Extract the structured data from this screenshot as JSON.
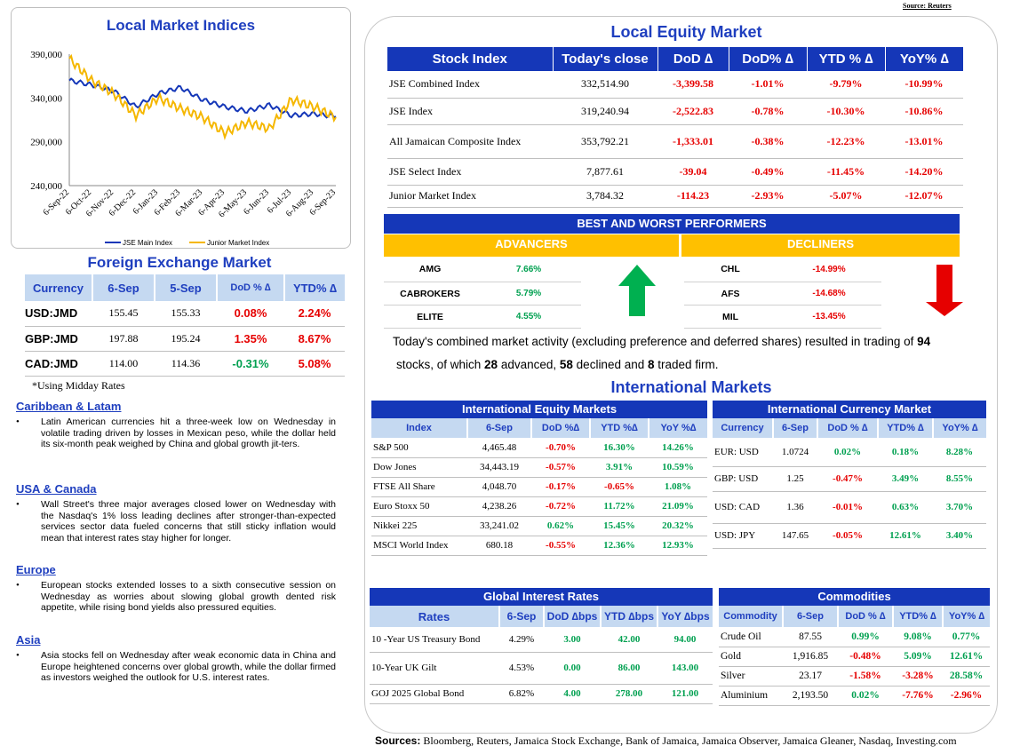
{
  "source_top": "Source: Reuters",
  "chart": {
    "title": "Local Market Indices",
    "chart_data": {
      "type": "line",
      "x": [
        "6-Sep-22",
        "6-Oct-22",
        "6-Nov-22",
        "6-Dec-22",
        "6-Jan-23",
        "6-Feb-23",
        "6-Mar-23",
        "6-Apr-23",
        "6-May-23",
        "6-Jun-23",
        "6-Jul-23",
        "6-Aug-23",
        "6-Sep-23"
      ],
      "series": [
        {
          "name": "JSE Main Index",
          "color": "#1537b8",
          "values": [
            360000,
            355000,
            348000,
            330000,
            345000,
            352000,
            338000,
            330000,
            325000,
            332000,
            320000,
            322000,
            319000
          ]
        },
        {
          "name": "Junior Market Index",
          "color": "#f5b700",
          "values": [
            385000,
            360000,
            345000,
            320000,
            340000,
            328000,
            318000,
            300000,
            312000,
            305000,
            338000,
            330000,
            318000
          ]
        }
      ],
      "yticks": [
        "390,000",
        "340,000",
        "290,000",
        "240,000"
      ],
      "ylim": [
        240000,
        390000
      ]
    }
  },
  "fx": {
    "title": "Foreign Exchange Market",
    "headers": [
      "Currency",
      "6-Sep",
      "5-Sep",
      "DoD % ∆",
      "YTD% ∆"
    ],
    "rows": [
      {
        "cur": "USD:JMD",
        "d1": "155.45",
        "d2": "155.33",
        "dod": "0.08%",
        "ytd": "2.24%",
        "dod_s": "neg",
        "ytd_s": "neg"
      },
      {
        "cur": "GBP:JMD",
        "d1": "197.88",
        "d2": "195.24",
        "dod": "1.35%",
        "ytd": "8.67%",
        "dod_s": "neg",
        "ytd_s": "neg"
      },
      {
        "cur": "CAD:JMD",
        "d1": "114.00",
        "d2": "114.36",
        "dod": "-0.31%",
        "ytd": "5.08%",
        "dod_s": "pos",
        "ytd_s": "neg"
      }
    ],
    "note": "*Using Midday Rates"
  },
  "news": [
    {
      "heading": "Caribbean & Latam",
      "text": "Latin American currencies hit a three-week low on Wednesday in volatile trading driven by losses in Mexican peso, while the dollar held its six-month peak weighed by China and global growth jit-ters."
    },
    {
      "heading": "USA & Canada",
      "text": "Wall Street's three major averages closed lower on Wednesday with the Nasdaq's 1% loss leading declines after stronger-than-expected services sector data fueled concerns that still sticky inflation would mean that interest rates stay higher for longer."
    },
    {
      "heading": "Europe",
      "text": "European stocks extended losses to a sixth consecutive session on Wednesday as worries about slowing global growth dented risk appetite, while rising bond yields also pressured equities."
    },
    {
      "heading": "Asia",
      "text": "Asia stocks fell on Wednesday after weak economic data in China and Europe heightened concerns over global growth, while the dollar firmed as investors weighed the outlook for U.S. interest rates."
    }
  ],
  "equity": {
    "title": "Local Equity Market",
    "headers": [
      "Stock Index",
      "Today's close",
      "DoD  ∆",
      "DoD% ∆",
      "YTD % ∆",
      "YoY% ∆"
    ],
    "rows": [
      [
        "JSE Combined Index",
        "332,514.90",
        "-3,399.58",
        "-1.01%",
        "-9.79%",
        "-10.99%"
      ],
      [
        "JSE Index",
        "319,240.94",
        "-2,522.83",
        "-0.78%",
        "-10.30%",
        "-10.86%"
      ],
      [
        "All Jamaican Composite Index",
        "353,792.21",
        "-1,333.01",
        "-0.38%",
        "-12.23%",
        "-13.01%"
      ],
      [
        "JSE Select Index",
        "7,877.61",
        "-39.04",
        "-0.49%",
        "-11.45%",
        "-14.20%"
      ],
      [
        "Junior Market Index",
        "3,784.32",
        "-114.23",
        "-2.93%",
        "-5.07%",
        "-12.07%"
      ]
    ]
  },
  "performers": {
    "title": "BEST AND WORST PERFORMERS",
    "adv_label": "ADVANCERS",
    "dec_label": "DECLINERS",
    "advancers": [
      [
        "AMG",
        "7.66%"
      ],
      [
        "CABROKERS",
        "5.79%"
      ],
      [
        "ELITE",
        "4.55%"
      ]
    ],
    "decliners": [
      [
        "CHL",
        "-14.99%"
      ],
      [
        "AFS",
        "-14.68%"
      ],
      [
        "MIL",
        "-13.45%"
      ]
    ]
  },
  "activity": {
    "p1": "Today's combined market activity (excluding preference and deferred shares) resulted in trading of ",
    "n1": "94",
    "p2": "stocks, of which ",
    "n2": "28",
    "p3": " advanced, ",
    "n3": "58",
    "p4": " declined and ",
    "n4": "8",
    "p5": " traded firm."
  },
  "intl": {
    "title": "International Markets",
    "eq_title": "International Equity Markets",
    "eq_headers": [
      "Index",
      "6-Sep",
      "DoD %∆",
      "YTD %∆",
      "YoY %∆"
    ],
    "eq_rows": [
      [
        "S&P 500",
        "4,465.48",
        "-0.70%",
        "16.30%",
        "14.26%"
      ],
      [
        "Dow Jones",
        "34,443.19",
        "-0.57%",
        "3.91%",
        "10.59%"
      ],
      [
        "FTSE All Share",
        "4,048.70",
        "-0.17%",
        "-0.65%",
        "1.08%"
      ],
      [
        "Euro Stoxx 50",
        "4,238.26",
        "-0.72%",
        "11.72%",
        "21.09%"
      ],
      [
        "Nikkei 225",
        "33,241.02",
        "0.62%",
        "15.45%",
        "20.32%"
      ],
      [
        "MSCI World Index",
        "680.18",
        "-0.55%",
        "12.36%",
        "12.93%"
      ]
    ],
    "cur_title": "International Currency Market",
    "cur_headers": [
      "Currency",
      "6-Sep",
      "DoD % ∆",
      "YTD% ∆",
      "YoY% ∆"
    ],
    "cur_rows": [
      [
        "EUR: USD",
        "1.0724",
        "0.02%",
        "0.18%",
        "8.28%"
      ],
      [
        "GBP: USD",
        "1.25",
        "-0.47%",
        "3.49%",
        "8.55%"
      ],
      [
        "USD: CAD",
        "1.36",
        "-0.01%",
        "0.63%",
        "3.70%"
      ],
      [
        "USD: JPY",
        "147.65",
        "-0.05%",
        "12.61%",
        "3.40%"
      ]
    ]
  },
  "rates": {
    "title": "Global Interest Rates",
    "headers": [
      "Rates",
      "6-Sep",
      "DoD ∆bps",
      "YTD ∆bps",
      "YoY ∆bps"
    ],
    "rows": [
      [
        "10 -Year US Treasury Bond",
        "4.29%",
        "3.00",
        "42.00",
        "94.00"
      ],
      [
        "10-Year UK Gilt",
        "4.53%",
        "0.00",
        "86.00",
        "143.00"
      ],
      [
        "GOJ 2025 Global Bond",
        "6.82%",
        "4.00",
        "278.00",
        "121.00"
      ]
    ]
  },
  "commodities": {
    "title": "Commodities",
    "headers": [
      "Commodity",
      "6-Sep",
      "DoD % ∆",
      "YTD% ∆",
      "YoY% ∆"
    ],
    "rows": [
      [
        "Crude Oil",
        "87.55",
        "0.99%",
        "9.08%",
        "0.77%"
      ],
      [
        "Gold",
        "1,916.85",
        "-0.48%",
        "5.09%",
        "12.61%"
      ],
      [
        "Silver",
        "23.17",
        "-1.58%",
        "-3.28%",
        "28.58%"
      ],
      [
        "Aluminium",
        "2,193.50",
        "0.02%",
        "-7.76%",
        "-2.96%"
      ]
    ]
  },
  "footer": {
    "label": "Sources:",
    "text": " Bloomberg, Reuters, Jamaica Stock Exchange, Bank of Jamaica, Jamaica Observer, Jamaica Gleaner, Nasdaq, Investing.com"
  }
}
